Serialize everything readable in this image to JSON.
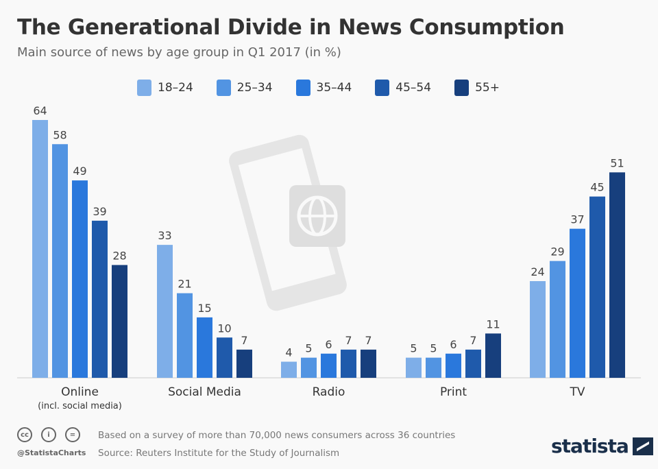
{
  "header": {
    "title": "The Generational Divide in News Consumption",
    "subtitle": "Main source of news by age group in Q1 2017 (in %)"
  },
  "chart_data": {
    "type": "bar",
    "categories": [
      "Online",
      "Social Media",
      "Radio",
      "Print",
      "TV"
    ],
    "category_sublabels": [
      "(incl. social media)",
      "",
      "",
      "",
      ""
    ],
    "series": [
      {
        "name": "18–24",
        "color": "#7eaee8",
        "values": [
          64,
          33,
          4,
          5,
          24
        ]
      },
      {
        "name": "25–34",
        "color": "#5294e2",
        "values": [
          58,
          21,
          5,
          5,
          29
        ]
      },
      {
        "name": "35–44",
        "color": "#2a78dc",
        "values": [
          49,
          15,
          6,
          6,
          37
        ]
      },
      {
        "name": "45–54",
        "color": "#1f5aab",
        "values": [
          39,
          10,
          7,
          7,
          45
        ]
      },
      {
        "name": "55+",
        "color": "#173f7d",
        "values": [
          28,
          7,
          7,
          11,
          51
        ]
      }
    ],
    "ylim": [
      0,
      70
    ],
    "grid": false,
    "legend": "top",
    "data_labels": true
  },
  "footer": {
    "note": "Based on a survey of more than 70,000 news consumers across 36 countries",
    "source": "Source: Reuters Institute for the Study of Journalism",
    "handle": "@StatistaCharts",
    "brand": "statista",
    "cc_icons": [
      "cc",
      "i",
      "="
    ]
  }
}
